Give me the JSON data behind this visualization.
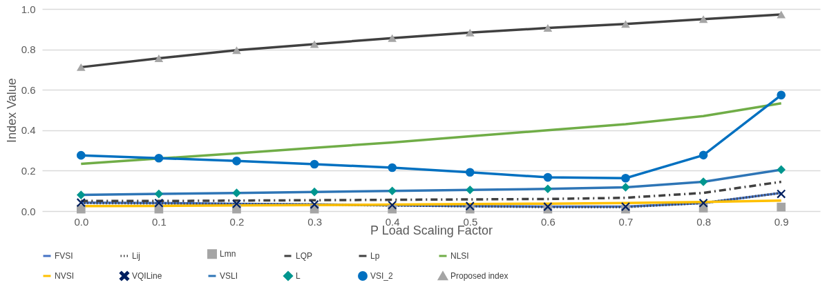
{
  "chart_data": {
    "type": "line",
    "xlabel": "P Load Scaling Factor",
    "ylabel": "Index Value",
    "categories": [
      "0.0",
      "0.1",
      "0.2",
      "0.3",
      "0.4",
      "0.5",
      "0.6",
      "0.7",
      "0.8",
      "0.9"
    ],
    "ylim": [
      0,
      1
    ],
    "yticks": [
      {
        "value": 0,
        "label": "0.0"
      },
      {
        "value": 0.2,
        "label": "0.2"
      },
      {
        "value": 0.4,
        "label": "0.4"
      },
      {
        "value": 0.6,
        "label": "0.6"
      },
      {
        "value": 0.8,
        "label": "0.8"
      },
      {
        "value": 1,
        "label": "1.0"
      }
    ],
    "grid": "y",
    "legend": "bottom",
    "series": [
      {
        "name": "FVSI",
        "color": "#4472c4",
        "type": "line",
        "marker": "none",
        "line_style": "solid",
        "values": [
          0.042,
          0.04,
          0.036,
          0.033,
          0.029,
          0.025,
          0.022,
          0.022,
          0.04,
          0.09
        ]
      },
      {
        "name": "Lij",
        "color": "#404040",
        "type": "line",
        "marker": "none",
        "line_style": "dotted",
        "values": [
          0.04,
          0.038,
          0.035,
          0.032,
          0.028,
          0.024,
          0.02,
          0.02,
          0.04,
          0.09
        ]
      },
      {
        "name": "Lmn",
        "color": "#a5a5a5",
        "type": "scatter",
        "marker": "square",
        "values": [
          0.01,
          0.01,
          0.01,
          0.01,
          0.01,
          0.01,
          0.01,
          0.01,
          0.015,
          0.02
        ]
      },
      {
        "name": "LQP",
        "color": "#404040",
        "type": "line",
        "marker": "none",
        "line_style": "dashed",
        "values": [
          0.05,
          0.05,
          0.052,
          0.054,
          0.056,
          0.058,
          0.06,
          0.066,
          0.09,
          0.145
        ]
      },
      {
        "name": "Lp",
        "color": "#404040",
        "type": "line",
        "marker": "none",
        "line_style": "solid",
        "values": [
          0.712,
          0.756,
          0.796,
          0.826,
          0.856,
          0.883,
          0.906,
          0.926,
          0.95,
          0.973
        ]
      },
      {
        "name": "NLSI",
        "color": "#70ad47",
        "type": "line",
        "marker": "none",
        "line_style": "solid",
        "values": [
          0.234,
          0.26,
          0.286,
          0.313,
          0.34,
          0.37,
          0.4,
          0.43,
          0.47,
          0.533
        ]
      },
      {
        "name": "NVSI",
        "color": "#ffc000",
        "type": "line",
        "marker": "none",
        "line_style": "solid",
        "values": [
          0.025,
          0.026,
          0.028,
          0.03,
          0.032,
          0.035,
          0.037,
          0.04,
          0.045,
          0.052
        ]
      },
      {
        "name": "VQILine",
        "color": "#002060",
        "type": "scatter",
        "marker": "cross",
        "values": [
          0.042,
          0.04,
          0.036,
          0.033,
          0.03,
          0.025,
          0.022,
          0.022,
          0.04,
          0.085
        ]
      },
      {
        "name": "VSLI",
        "color": "#2e75b6",
        "type": "line",
        "marker": "none",
        "line_style": "solid",
        "values": [
          0.08,
          0.085,
          0.09,
          0.095,
          0.1,
          0.105,
          0.11,
          0.118,
          0.145,
          0.205
        ]
      },
      {
        "name": "L",
        "color": "#00968f",
        "type": "scatter",
        "marker": "diamond",
        "values": [
          0.08,
          0.085,
          0.09,
          0.095,
          0.1,
          0.105,
          0.11,
          0.118,
          0.145,
          0.205
        ]
      },
      {
        "name": "VSI_2",
        "color": "#0070c0",
        "type": "line",
        "marker": "circle",
        "line_style": "solid",
        "values": [
          0.276,
          0.262,
          0.248,
          0.232,
          0.215,
          0.192,
          0.167,
          0.163,
          0.277,
          0.574
        ]
      },
      {
        "name": "Proposed index",
        "color": "#a5a5a5",
        "type": "scatter",
        "marker": "triangle",
        "values": [
          0.712,
          0.756,
          0.796,
          0.826,
          0.856,
          0.883,
          0.906,
          0.926,
          0.95,
          0.973
        ]
      }
    ]
  }
}
